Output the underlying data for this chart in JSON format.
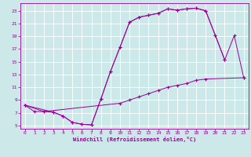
{
  "xlabel": "Windchill (Refroidissement éolien,°C)",
  "background_color": "#cce8e8",
  "line_color": "#990099",
  "grid_color": "#ffffff",
  "xlim": [
    -0.5,
    23.5
  ],
  "ylim": [
    4.5,
    24.2
  ],
  "xticks": [
    0,
    1,
    2,
    3,
    4,
    5,
    6,
    7,
    8,
    9,
    10,
    11,
    12,
    13,
    14,
    15,
    16,
    17,
    18,
    19,
    20,
    21,
    22,
    23
  ],
  "yticks": [
    5,
    7,
    9,
    11,
    13,
    15,
    17,
    19,
    21,
    23
  ],
  "curve_a_x": [
    0,
    1,
    2,
    3,
    4,
    5,
    6,
    7,
    8,
    9,
    10,
    11,
    12,
    13,
    14,
    15,
    16,
    17,
    18,
    19,
    20,
    21
  ],
  "curve_a_y": [
    8.2,
    7.2,
    7.2,
    7.1,
    6.5,
    5.5,
    5.2,
    5.1,
    9.2,
    13.5,
    17.3,
    21.2,
    22.0,
    22.3,
    22.6,
    23.3,
    23.1,
    23.3,
    23.4,
    23.0,
    19.2,
    15.3
  ],
  "curve_b_x": [
    0,
    2,
    10,
    11,
    12,
    13,
    14,
    15,
    16,
    17,
    18,
    19,
    23
  ],
  "curve_b_y": [
    8.2,
    7.2,
    8.5,
    9.0,
    9.5,
    10.0,
    10.5,
    11.0,
    11.3,
    11.6,
    12.1,
    12.3,
    12.5
  ],
  "curve_c_x": [
    0,
    3,
    4,
    5,
    6,
    7,
    8,
    9,
    10,
    11,
    12,
    13,
    14,
    15,
    16,
    17,
    18,
    19,
    20,
    21,
    22,
    23
  ],
  "curve_c_y": [
    8.2,
    7.1,
    6.5,
    5.5,
    5.2,
    5.1,
    9.2,
    13.5,
    17.3,
    21.2,
    22.0,
    22.3,
    22.6,
    23.3,
    23.1,
    23.3,
    23.4,
    23.0,
    19.2,
    15.3,
    19.1,
    12.5
  ]
}
